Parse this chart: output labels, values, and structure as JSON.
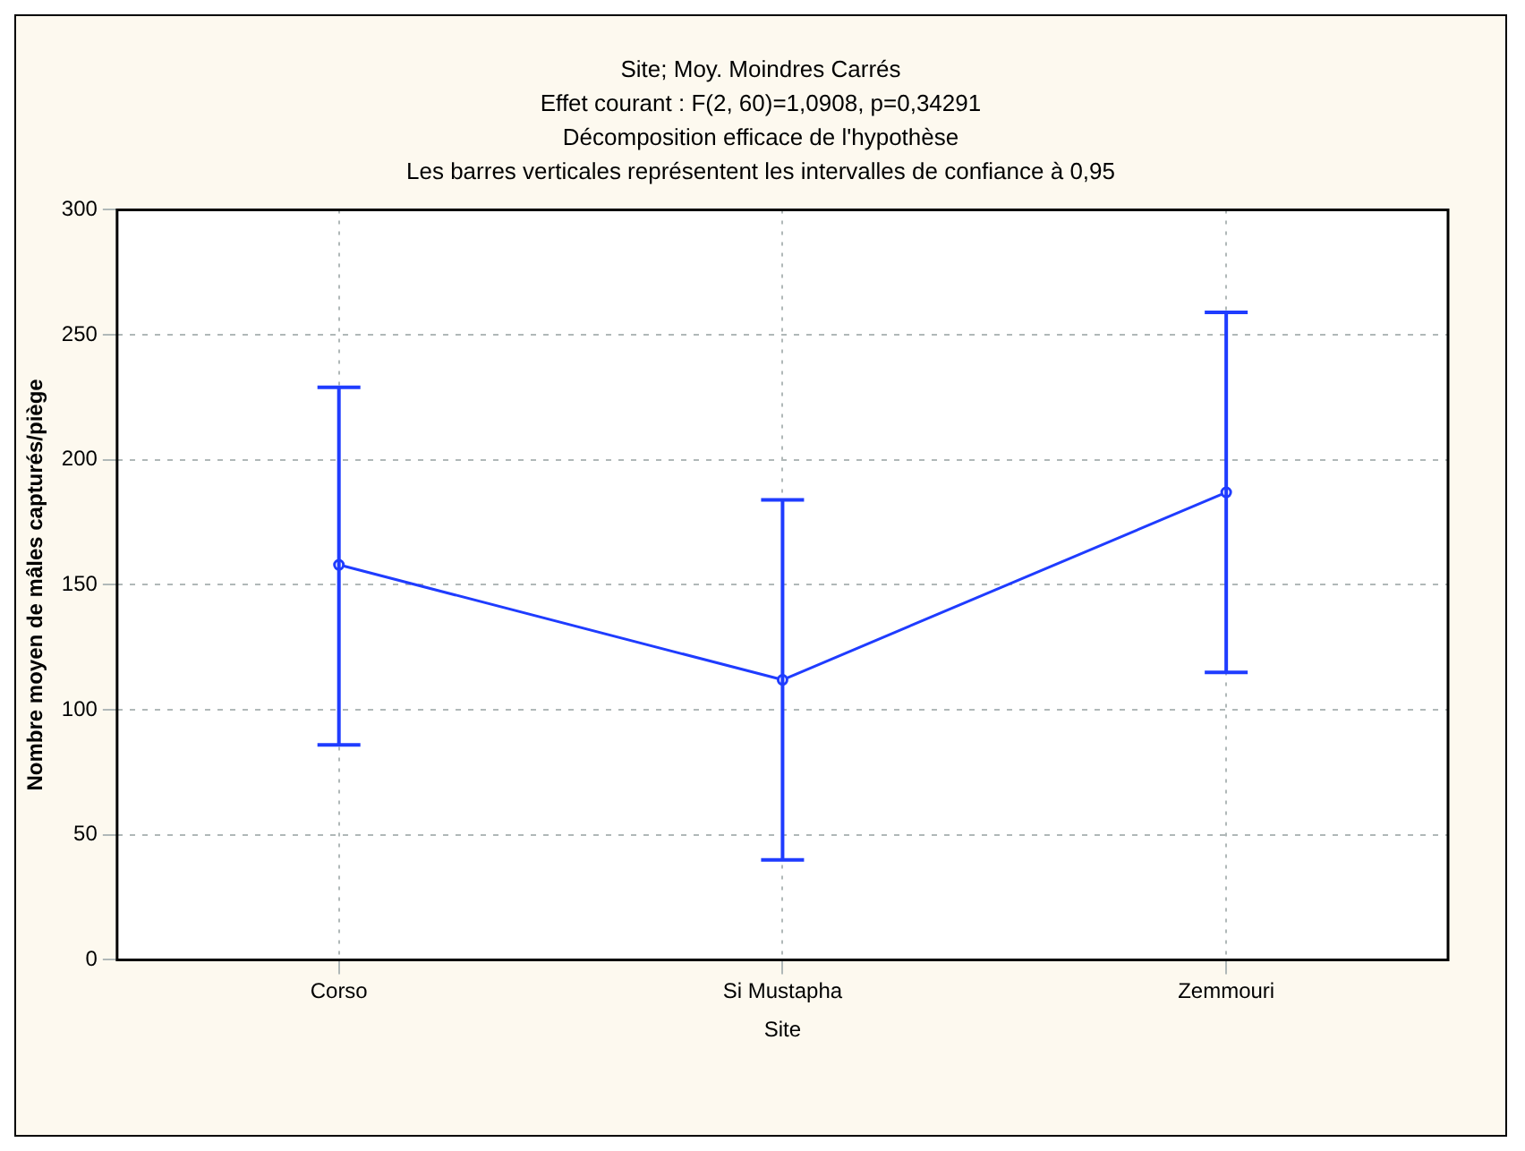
{
  "chart_data": {
    "type": "line",
    "title": "Site; Moy. Moindres Carrés",
    "subtitle": "Effet courant : F(2, 60)=1,0908, p=0,34291",
    "annotations": [
      "Décomposition efficace de l'hypothèse",
      "Les barres verticales représentent les intervalles de confiance à 0,95"
    ],
    "xlabel": "Site",
    "ylabel": "Nombre moyen de mâles capturés/piège",
    "categories": [
      "Corso",
      "Si Mustapha",
      "Zemmouri"
    ],
    "series": [
      {
        "color": "#1f3cff",
        "values": [
          158,
          112,
          187
        ],
        "errors": [
          [
            86,
            229
          ],
          [
            40,
            184
          ],
          [
            115,
            259
          ]
        ]
      }
    ],
    "ylim": [
      0,
      300
    ],
    "yticks": [
      0,
      50,
      100,
      150,
      200,
      250,
      300
    ],
    "grid": true,
    "marker": "circle",
    "line_style": "solid",
    "legend": false
  }
}
